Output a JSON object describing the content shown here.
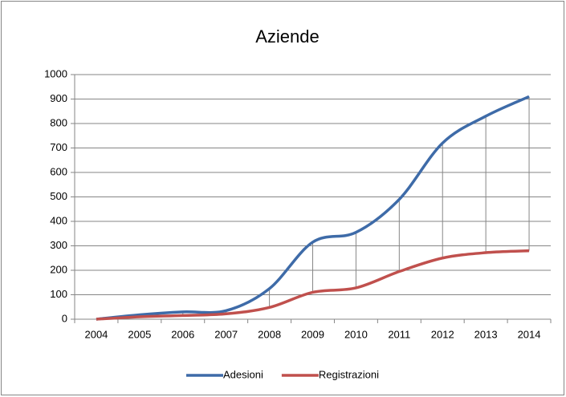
{
  "chart_data": {
    "type": "line",
    "title": "Aziende",
    "categories": [
      "2004",
      "2005",
      "2006",
      "2007",
      "2008",
      "2009",
      "2010",
      "2011",
      "2012",
      "2013",
      "2014"
    ],
    "series": [
      {
        "name": "Adesioni",
        "color": "#3e6ba8",
        "values": [
          0,
          18,
          30,
          35,
          125,
          315,
          355,
          490,
          720,
          830,
          910
        ]
      },
      {
        "name": "Registrazioni",
        "color": "#c0504d",
        "values": [
          0,
          10,
          15,
          22,
          48,
          110,
          128,
          195,
          250,
          272,
          280
        ]
      }
    ],
    "ylim": [
      0,
      1000
    ],
    "yticks": [
      0,
      100,
      200,
      300,
      400,
      500,
      600,
      700,
      800,
      900,
      1000
    ],
    "grid": true,
    "smooth": true,
    "drop_lines": true,
    "legend": "bottom"
  }
}
